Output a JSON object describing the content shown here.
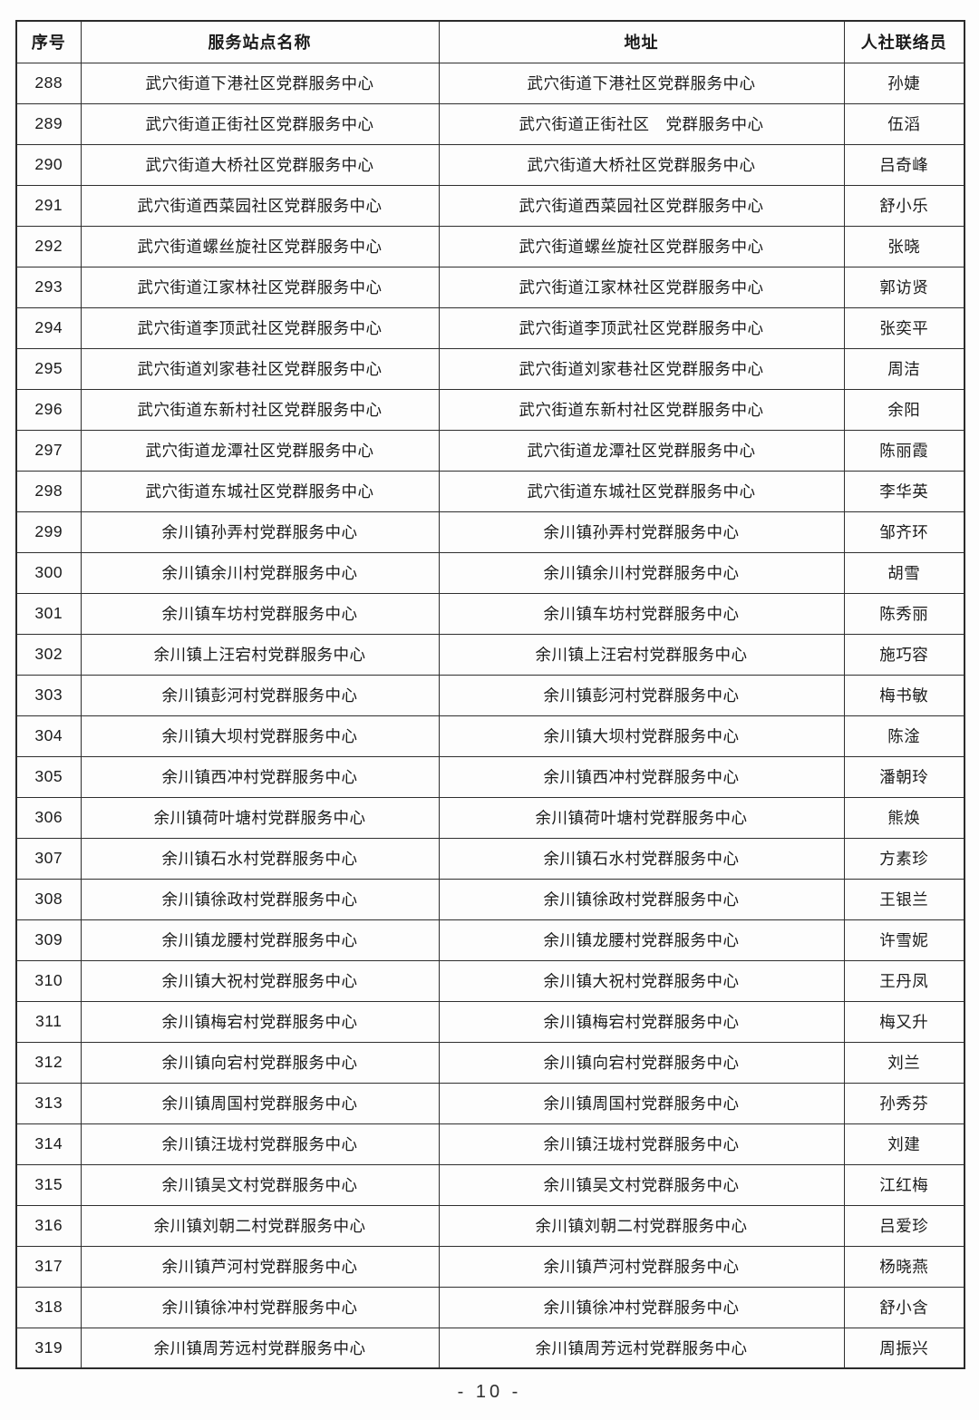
{
  "document": {
    "page_number": "- 10 -"
  },
  "colors": {
    "background": "#fdfdfd",
    "border": "#2f2f2f",
    "text": "#1b1b1b"
  },
  "table": {
    "columns": [
      "序号",
      "服务站点名称",
      "地址",
      "人社联络员"
    ],
    "rows": [
      {
        "no": "288",
        "name": "武穴街道下港社区党群服务中心",
        "address": "武穴街道下港社区党群服务中心",
        "liaison": "孙婕"
      },
      {
        "no": "289",
        "name": "武穴街道正街社区党群服务中心",
        "address": "武穴街道正街社区　党群服务中心",
        "liaison": "伍滔"
      },
      {
        "no": "290",
        "name": "武穴街道大桥社区党群服务中心",
        "address": "武穴街道大桥社区党群服务中心",
        "liaison": "吕奇峰"
      },
      {
        "no": "291",
        "name": "武穴街道西菜园社区党群服务中心",
        "address": "武穴街道西菜园社区党群服务中心",
        "liaison": "舒小乐"
      },
      {
        "no": "292",
        "name": "武穴街道螺丝旋社区党群服务中心",
        "address": "武穴街道螺丝旋社区党群服务中心",
        "liaison": "张晓"
      },
      {
        "no": "293",
        "name": "武穴街道江家林社区党群服务中心",
        "address": "武穴街道江家林社区党群服务中心",
        "liaison": "郭访贤"
      },
      {
        "no": "294",
        "name": "武穴街道李顶武社区党群服务中心",
        "address": "武穴街道李顶武社区党群服务中心",
        "liaison": "张奕平"
      },
      {
        "no": "295",
        "name": "武穴街道刘家巷社区党群服务中心",
        "address": "武穴街道刘家巷社区党群服务中心",
        "liaison": "周洁"
      },
      {
        "no": "296",
        "name": "武穴街道东新村社区党群服务中心",
        "address": "武穴街道东新村社区党群服务中心",
        "liaison": "余阳"
      },
      {
        "no": "297",
        "name": "武穴街道龙潭社区党群服务中心",
        "address": "武穴街道龙潭社区党群服务中心",
        "liaison": "陈丽霞"
      },
      {
        "no": "298",
        "name": "武穴街道东城社区党群服务中心",
        "address": "武穴街道东城社区党群服务中心",
        "liaison": "李华英"
      },
      {
        "no": "299",
        "name": "余川镇孙弄村党群服务中心",
        "address": "余川镇孙弄村党群服务中心",
        "liaison": "邹齐环"
      },
      {
        "no": "300",
        "name": "余川镇余川村党群服务中心",
        "address": "余川镇余川村党群服务中心",
        "liaison": "胡雪"
      },
      {
        "no": "301",
        "name": "余川镇车坊村党群服务中心",
        "address": "余川镇车坊村党群服务中心",
        "liaison": "陈秀丽"
      },
      {
        "no": "302",
        "name": "余川镇上汪宕村党群服务中心",
        "address": "余川镇上汪宕村党群服务中心",
        "liaison": "施巧容"
      },
      {
        "no": "303",
        "name": "余川镇彭河村党群服务中心",
        "address": "余川镇彭河村党群服务中心",
        "liaison": "梅书敏"
      },
      {
        "no": "304",
        "name": "余川镇大坝村党群服务中心",
        "address": "余川镇大坝村党群服务中心",
        "liaison": "陈淦"
      },
      {
        "no": "305",
        "name": "余川镇西冲村党群服务中心",
        "address": "余川镇西冲村党群服务中心",
        "liaison": "潘朝玲"
      },
      {
        "no": "306",
        "name": "余川镇荷叶塘村党群服务中心",
        "address": "余川镇荷叶塘村党群服务中心",
        "liaison": "熊焕"
      },
      {
        "no": "307",
        "name": "余川镇石水村党群服务中心",
        "address": "余川镇石水村党群服务中心",
        "liaison": "方素珍"
      },
      {
        "no": "308",
        "name": "余川镇徐政村党群服务中心",
        "address": "余川镇徐政村党群服务中心",
        "liaison": "王银兰"
      },
      {
        "no": "309",
        "name": "余川镇龙腰村党群服务中心",
        "address": "余川镇龙腰村党群服务中心",
        "liaison": "许雪妮"
      },
      {
        "no": "310",
        "name": "余川镇大祝村党群服务中心",
        "address": "余川镇大祝村党群服务中心",
        "liaison": "王丹凤"
      },
      {
        "no": "311",
        "name": "余川镇梅宕村党群服务中心",
        "address": "余川镇梅宕村党群服务中心",
        "liaison": "梅又升"
      },
      {
        "no": "312",
        "name": "余川镇向宕村党群服务中心",
        "address": "余川镇向宕村党群服务中心",
        "liaison": "刘兰"
      },
      {
        "no": "313",
        "name": "余川镇周国村党群服务中心",
        "address": "余川镇周国村党群服务中心",
        "liaison": "孙秀芬"
      },
      {
        "no": "314",
        "name": "余川镇汪垅村党群服务中心",
        "address": "余川镇汪垅村党群服务中心",
        "liaison": "刘建"
      },
      {
        "no": "315",
        "name": "余川镇吴文村党群服务中心",
        "address": "余川镇吴文村党群服务中心",
        "liaison": "江红梅"
      },
      {
        "no": "316",
        "name": "余川镇刘朝二村党群服务中心",
        "address": "余川镇刘朝二村党群服务中心",
        "liaison": "吕爱珍"
      },
      {
        "no": "317",
        "name": "余川镇芦河村党群服务中心",
        "address": "余川镇芦河村党群服务中心",
        "liaison": "杨晓燕"
      },
      {
        "no": "318",
        "name": "余川镇徐冲村党群服务中心",
        "address": "余川镇徐冲村党群服务中心",
        "liaison": "舒小含"
      },
      {
        "no": "319",
        "name": "余川镇周芳远村党群服务中心",
        "address": "余川镇周芳远村党群服务中心",
        "liaison": "周振兴"
      }
    ]
  }
}
